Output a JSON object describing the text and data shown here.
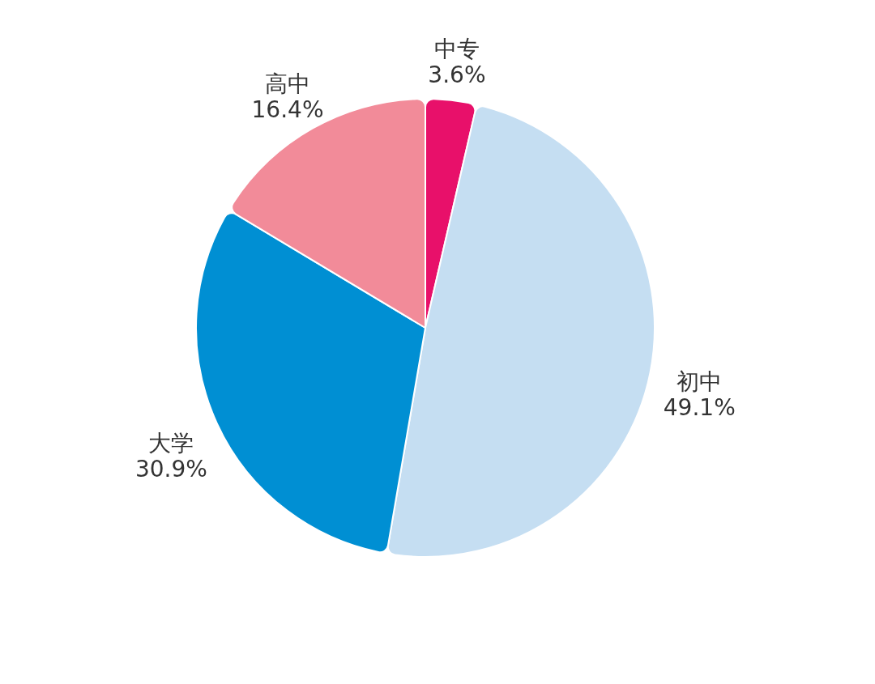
{
  "chart_data": {
    "type": "pie",
    "categories": [
      "中专",
      "初中",
      "大学",
      "高中"
    ],
    "values": [
      3.6,
      49.1,
      30.9,
      16.4
    ],
    "value_labels": [
      "3.6%",
      "49.1%",
      "30.9%",
      "16.4%"
    ],
    "colors": [
      "#e8106a",
      "#c5def2",
      "#008fd3",
      "#f28b99"
    ],
    "legend": false
  }
}
